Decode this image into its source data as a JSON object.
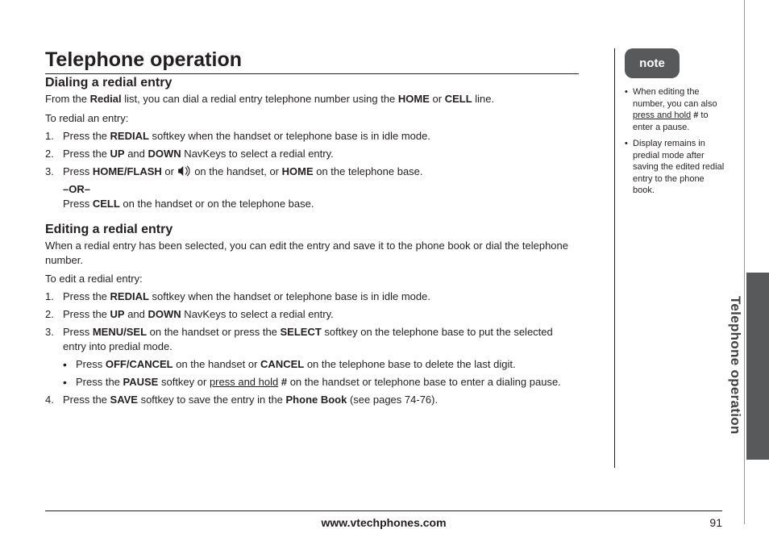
{
  "title": "Telephone operation",
  "section1": {
    "heading": "Dialing a redial entry",
    "intro_parts": [
      "From the ",
      "Redial",
      " list, you can dial a redial entry telephone number using the ",
      "HOME",
      " or ",
      "CELL",
      " line."
    ],
    "lead": "To redial an entry:",
    "steps": [
      {
        "parts": [
          "Press the ",
          "REDIAL",
          " softkey when the handset or telephone base is in idle mode."
        ]
      },
      {
        "parts": [
          "Press the ",
          "UP",
          " and ",
          "DOWN",
          " NavKeys to select a redial entry."
        ]
      },
      {
        "line1_parts": [
          "Press ",
          "HOME/FLASH",
          " or ",
          {
            "icon": "speaker"
          },
          " on the handset, or ",
          "HOME",
          " on the telephone base."
        ],
        "or": "–OR–",
        "line2_parts": [
          "Press ",
          "CELL",
          " on the handset or on the telephone base."
        ]
      }
    ]
  },
  "section2": {
    "heading": "Editing a redial entry",
    "intro": "When a redial entry has been selected, you can edit the entry and save it to the phone book or dial the telephone number.",
    "lead": "To edit a redial entry:",
    "steps": [
      {
        "parts": [
          "Press the ",
          "REDIAL",
          " softkey when the handset or telephone base is in idle mode."
        ]
      },
      {
        "parts": [
          "Press the ",
          "UP",
          " and ",
          "DOWN",
          " NavKeys to select a redial entry."
        ]
      },
      {
        "parts": [
          "Press ",
          "MENU/SEL",
          " on the handset or press the ",
          "SELECT",
          " softkey on the telephone base to put the selected entry into predial mode."
        ],
        "bullets": [
          {
            "parts": [
              "Press ",
              "OFF/CANCEL",
              " on the handset or ",
              "CANCEL",
              " on the telephone base to delete the last digit."
            ]
          },
          {
            "parts": [
              "Press the ",
              "PAUSE",
              " softkey or ",
              {
                "u": "press and hold"
              },
              " ",
              "#",
              " on the handset or telephone base to enter a dialing pause."
            ]
          }
        ]
      },
      {
        "parts": [
          "Press the ",
          "SAVE",
          " softkey to save the entry in the ",
          "Phone Book",
          " (see pages 74-76)."
        ]
      }
    ]
  },
  "sidebar": {
    "badge": "note",
    "notes": [
      {
        "parts": [
          "When editing the number, you can also ",
          {
            "u": "press and hold"
          },
          " ",
          "#",
          " to enter a pause."
        ]
      },
      {
        "text": "Display remains in predial mode after saving the edited redial entry to the phone book."
      }
    ]
  },
  "side_tab": "Telephone operation",
  "footer": {
    "url": "www.vtechphones.com",
    "page": "91"
  },
  "colors": {
    "text": "#231f20",
    "tab_bg": "#58595b",
    "tab_text": "#414042",
    "rule": "#939598",
    "badge_bg": "#58595b"
  }
}
